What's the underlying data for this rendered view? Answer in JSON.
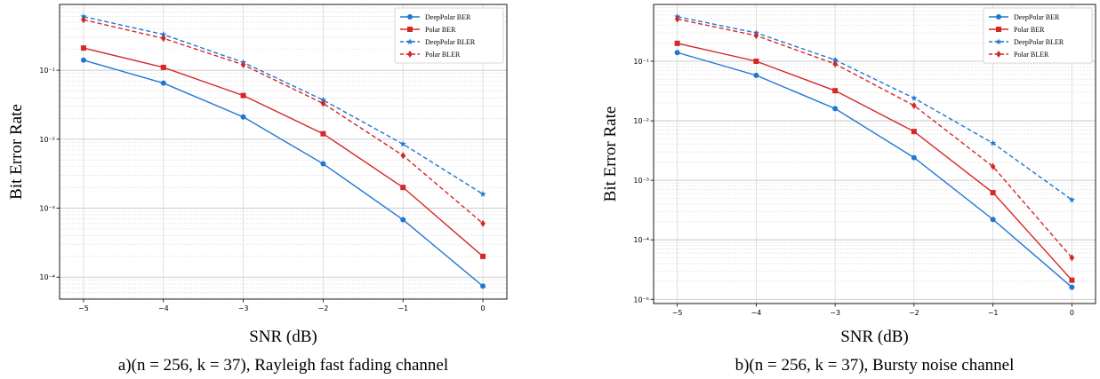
{
  "chart_data": [
    {
      "type": "line",
      "yscale": "log",
      "xlabel": "SNR (dB)",
      "ylabel": "Bit Error Rate",
      "caption": "a)(n = 256, k = 37), Rayleigh fast fading channel",
      "x": [
        -5,
        -4,
        -3,
        -2,
        -1,
        0
      ],
      "xlim": [
        -5.3,
        0.3
      ],
      "ylim": [
        4.8e-05,
        0.9
      ],
      "x_ticks": [
        "−5",
        "−4",
        "−3",
        "−2",
        "−1",
        "0"
      ],
      "y_ticks": [
        {
          "value": 0.1,
          "label": "10⁻¹"
        },
        {
          "value": 0.01,
          "label": "10⁻²"
        },
        {
          "value": 0.001,
          "label": "10⁻³"
        },
        {
          "value": 0.0001,
          "label": "10⁻⁴"
        }
      ],
      "grid": true,
      "legend_position": "top-right",
      "series": [
        {
          "name": "DeepPolar BER",
          "color": "#1f77d4",
          "dash": "solid",
          "marker": "circle",
          "values": [
            0.14,
            0.065,
            0.021,
            0.0044,
            0.00068,
            7.4e-05
          ]
        },
        {
          "name": "Polar BER",
          "color": "#d62728",
          "dash": "solid",
          "marker": "square",
          "values": [
            0.21,
            0.11,
            0.043,
            0.012,
            0.002,
            0.0002
          ]
        },
        {
          "name": "DeepPolar BLER",
          "color": "#1f77d4",
          "dash": "dashed",
          "marker": "star",
          "values": [
            0.6,
            0.33,
            0.13,
            0.037,
            0.0085,
            0.0016
          ]
        },
        {
          "name": "Polar BLER",
          "color": "#d62728",
          "dash": "dashed",
          "marker": "diamond",
          "values": [
            0.54,
            0.29,
            0.12,
            0.033,
            0.0058,
            0.0006
          ]
        }
      ]
    },
    {
      "type": "line",
      "yscale": "log",
      "xlabel": "SNR (dB)",
      "ylabel": "Bit Error Rate",
      "caption": "b)(n = 256, k = 37), Bursty noise channel",
      "x": [
        -5,
        -4,
        -3,
        -2,
        -1,
        0
      ],
      "xlim": [
        -5.3,
        0.3
      ],
      "ylim": [
        8.5e-06,
        0.9
      ],
      "x_ticks": [
        "−5",
        "−4",
        "−3",
        "−2",
        "−1",
        "0"
      ],
      "y_ticks": [
        {
          "value": 0.1,
          "label": "10⁻¹"
        },
        {
          "value": 0.01,
          "label": "10⁻²"
        },
        {
          "value": 0.001,
          "label": "10⁻³"
        },
        {
          "value": 0.0001,
          "label": "10⁻⁴"
        },
        {
          "value": 1e-05,
          "label": "10⁻⁵"
        }
      ],
      "grid": true,
      "legend_position": "top-right",
      "series": [
        {
          "name": "DeepPolar BER",
          "color": "#1f77d4",
          "dash": "solid",
          "marker": "circle",
          "values": [
            0.14,
            0.058,
            0.016,
            0.0024,
            0.00022,
            1.6e-05
          ]
        },
        {
          "name": "Polar BER",
          "color": "#d62728",
          "dash": "solid",
          "marker": "square",
          "values": [
            0.2,
            0.1,
            0.032,
            0.0066,
            0.00062,
            2.1e-05
          ]
        },
        {
          "name": "DeepPolar BLER",
          "color": "#1f77d4",
          "dash": "dashed",
          "marker": "star",
          "values": [
            0.56,
            0.3,
            0.105,
            0.024,
            0.0042,
            0.00047
          ]
        },
        {
          "name": "Polar BLER",
          "color": "#d62728",
          "dash": "dashed",
          "marker": "diamond",
          "values": [
            0.51,
            0.27,
            0.09,
            0.018,
            0.0017,
            5e-05
          ]
        }
      ]
    }
  ]
}
